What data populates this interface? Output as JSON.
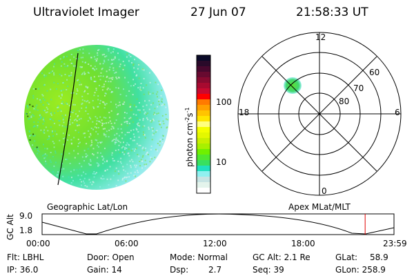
{
  "header": {
    "title": "Ultraviolet Imager",
    "date": "27 Jun 07",
    "time": "21:58:33 UT"
  },
  "colorbar": {
    "label": "photon cm",
    "exp1": "-2",
    "unit2": "s",
    "exp2": "-1",
    "ticks": [
      "100",
      "10"
    ],
    "colors": [
      "#0a0a28",
      "#2a0a2a",
      "#48082e",
      "#680a30",
      "#880a30",
      "#a80a30",
      "#c80a30",
      "#ff0000",
      "#ff7a00",
      "#ffa000",
      "#ffc400",
      "#ffe600",
      "#ffff80",
      "#f4ff00",
      "#e4f800",
      "#c8f000",
      "#a8f000",
      "#70f000",
      "#50e830",
      "#38e060",
      "#20e0c0",
      "#90f0f0",
      "#c8e4e4",
      "#e4f4ec",
      "#ffffff"
    ]
  },
  "polar": {
    "labels": {
      "top": "12",
      "bottom": "0",
      "left": "18",
      "right": "6"
    },
    "rings": [
      "60",
      "70",
      "80"
    ]
  },
  "timeline": {
    "left_label": "Geographic Lat/Lon",
    "right_label": "Apex MLat/MLT",
    "axis_label": "GC Alt",
    "y_ticks": [
      "9.0",
      "1.8"
    ],
    "x_ticks": [
      "00:00",
      "06:00",
      "12:00",
      "18:00",
      "23:59"
    ],
    "current_marker_fraction": 0.918
  },
  "status": {
    "flt": "Flt: LBHL",
    "ip": "IP: 36.0",
    "door": "Door: Open",
    "gain": "Gain: 14",
    "mode": "Mode: Normal",
    "dsp_label": "Dsp:",
    "dsp_value": "2.7",
    "gcalt": "GC Alt: 2.1 Re",
    "seq": "Seq: 39",
    "glat_label": "GLat:",
    "glat_value": "58.9",
    "glon": "GLon: 258.9"
  }
}
